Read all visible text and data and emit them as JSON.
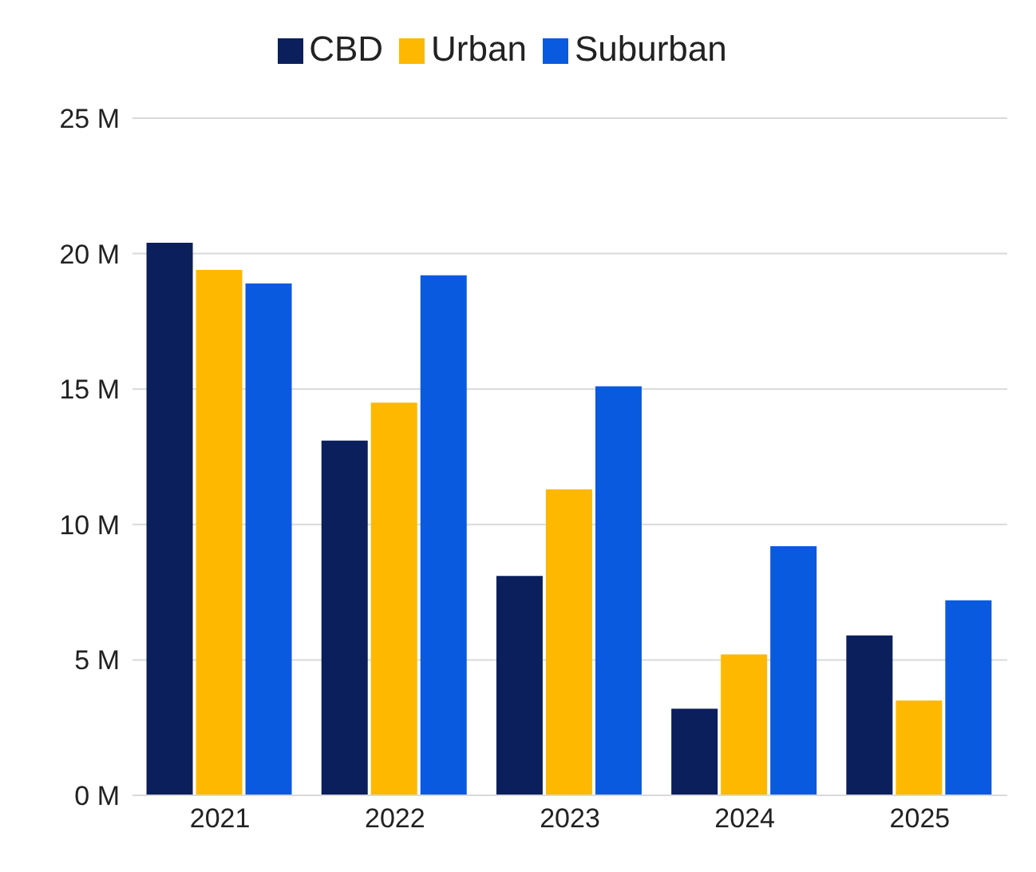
{
  "chart_data": {
    "type": "bar",
    "categories": [
      "2021",
      "2022",
      "2023",
      "2024",
      "2025"
    ],
    "series": [
      {
        "name": "CBD",
        "color": "#0b1f5c",
        "values": [
          20.4,
          13.1,
          8.1,
          3.2,
          5.9
        ]
      },
      {
        "name": "Urban",
        "color": "#ffb800",
        "values": [
          19.4,
          14.5,
          11.3,
          5.2,
          3.5
        ]
      },
      {
        "name": "Suburban",
        "color": "#0a5ae0",
        "values": [
          18.9,
          19.2,
          15.1,
          9.2,
          7.2
        ]
      }
    ],
    "ylim": [
      0,
      25
    ],
    "yticks": [
      {
        "value": 0,
        "label": "0 M"
      },
      {
        "value": 5,
        "label": "5 M"
      },
      {
        "value": 10,
        "label": "10 M"
      },
      {
        "value": 15,
        "label": "15 M"
      },
      {
        "value": 20,
        "label": "20 M"
      },
      {
        "value": 25,
        "label": "25 M"
      }
    ],
    "grid": "y",
    "legend": "top"
  }
}
